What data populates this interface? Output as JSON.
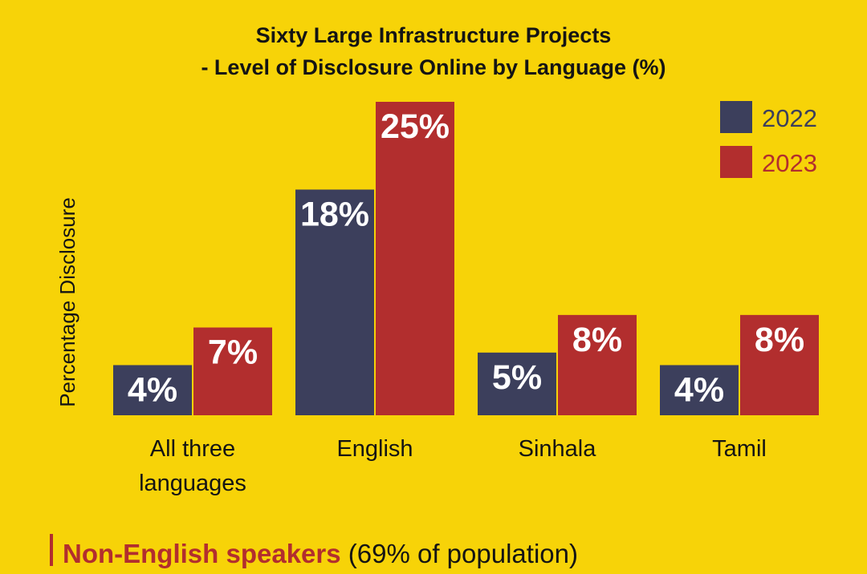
{
  "colors": {
    "background": "#F7D308",
    "series_2022": "#3C3F5C",
    "series_2023": "#B22E2E",
    "text": "#141414"
  },
  "chart_data": {
    "type": "bar",
    "title_line1": "Sixty Large Infrastructure Projects",
    "title_line2": "- Level of Disclosure Online by Language (%)",
    "ylabel": "Percentage Disclosure",
    "xlabel": "",
    "categories": [
      "All three languages",
      "English",
      "Sinhala",
      "Tamil"
    ],
    "category_lines": [
      [
        "All three",
        "languages"
      ],
      [
        "English"
      ],
      [
        "Sinhala"
      ],
      [
        "Tamil"
      ]
    ],
    "series": [
      {
        "name": "2022",
        "values": [
          4,
          18,
          5,
          4
        ],
        "labels": [
          "4%",
          "18%",
          "5%",
          "4%"
        ]
      },
      {
        "name": "2023",
        "values": [
          7,
          25,
          8,
          8
        ],
        "labels": [
          "7%",
          "25%",
          "8%",
          "8%"
        ]
      }
    ],
    "ylim": [
      0,
      25
    ],
    "grid": false,
    "legend_position": "top-right"
  },
  "footer": {
    "highlight": "Non-English speakers",
    "rest": " (69% of population)"
  }
}
